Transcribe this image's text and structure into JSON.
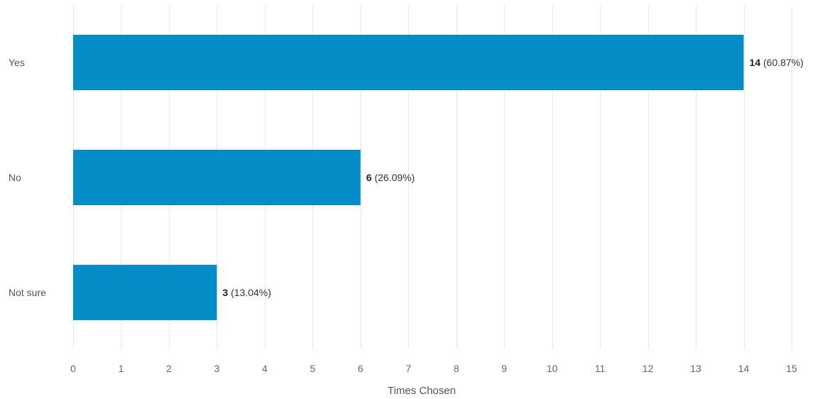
{
  "chart_data": {
    "type": "bar",
    "orientation": "horizontal",
    "categories": [
      "Yes",
      "No",
      "Not sure"
    ],
    "values": [
      14,
      6,
      3
    ],
    "percentages": [
      "60.87%",
      "26.09%",
      "13.04%"
    ],
    "data_labels": [
      {
        "count": "14",
        "percent": " (60.87%)"
      },
      {
        "count": "6",
        "percent": " (26.09%)"
      },
      {
        "count": "3",
        "percent": " (13.04%)"
      }
    ],
    "xlabel": "Times Chosen",
    "ylabel": "",
    "title": "",
    "xlim": [
      0,
      15
    ],
    "x_ticks": [
      0,
      1,
      2,
      3,
      4,
      5,
      6,
      7,
      8,
      9,
      10,
      11,
      12,
      13,
      14,
      15
    ],
    "grid": true,
    "legend": "none",
    "bar_color": "#058dc7"
  }
}
